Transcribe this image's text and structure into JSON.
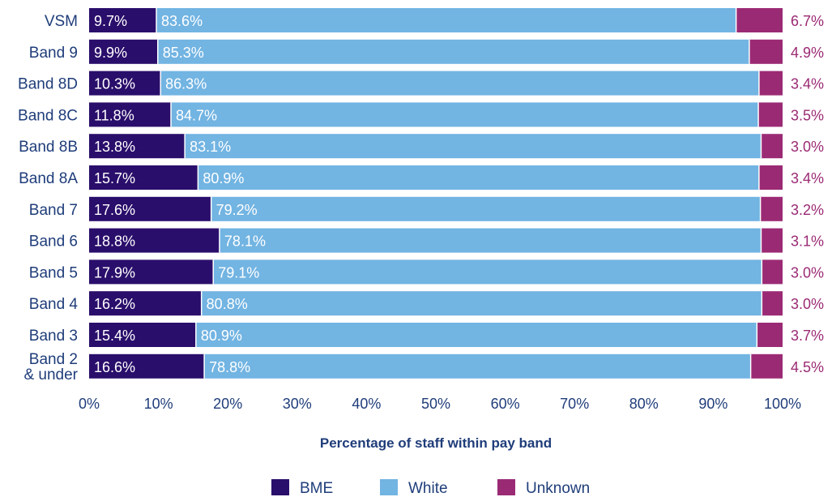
{
  "chart_data": {
    "type": "bar",
    "orientation": "horizontal",
    "stacked": true,
    "categories": [
      [
        "VSM"
      ],
      [
        "Band 9"
      ],
      [
        "Band 8D"
      ],
      [
        "Band 8C"
      ],
      [
        "Band 8B"
      ],
      [
        "Band 8A"
      ],
      [
        "Band 7"
      ],
      [
        "Band 6"
      ],
      [
        "Band 5"
      ],
      [
        "Band 4"
      ],
      [
        "Band 3"
      ],
      [
        "Band 2",
        "& under"
      ]
    ],
    "series": [
      {
        "name": "BME",
        "color": "#2a0e6b",
        "label_color": "#ffffff",
        "values": [
          9.7,
          9.9,
          10.3,
          11.8,
          13.8,
          15.7,
          17.6,
          18.8,
          17.9,
          16.2,
          15.4,
          16.6
        ],
        "labels": [
          "9.7%",
          "9.9%",
          "10.3%",
          "11.8%",
          "13.8%",
          "15.7%",
          "17.6%",
          "18.8%",
          "17.9%",
          "16.2%",
          "15.4%",
          "16.6%"
        ]
      },
      {
        "name": "White",
        "color": "#72b4e2",
        "label_color": "#ffffff",
        "values": [
          83.6,
          85.3,
          86.3,
          84.7,
          83.1,
          80.9,
          79.2,
          78.1,
          79.1,
          80.8,
          80.9,
          78.8
        ],
        "labels": [
          "83.6%",
          "85.3%",
          "86.3%",
          "84.7%",
          "83.1%",
          "80.9%",
          "79.2%",
          "78.1%",
          "79.1%",
          "80.8%",
          "80.9%",
          "78.8%"
        ]
      },
      {
        "name": "Unknown",
        "color": "#9b2a74",
        "label_color": "#9b2a74",
        "values": [
          6.7,
          4.9,
          3.4,
          3.5,
          3.0,
          3.4,
          3.2,
          3.1,
          3.0,
          3.0,
          3.7,
          4.5
        ],
        "labels": [
          "6.7%",
          "4.9%",
          "3.4%",
          "3.5%",
          "3.0%",
          "3.4%",
          "3.2%",
          "3.1%",
          "3.0%",
          "3.0%",
          "3.7%",
          "4.5%"
        ]
      }
    ],
    "xlim": [
      0,
      100
    ],
    "x_ticks": [
      "0%",
      "10%",
      "20%",
      "30%",
      "40%",
      "50%",
      "60%",
      "70%",
      "80%",
      "90%",
      "100%"
    ],
    "xlabel": "Percentage of staff within pay band",
    "ylabel": "",
    "grid": false,
    "legend_position": "bottom-center"
  }
}
